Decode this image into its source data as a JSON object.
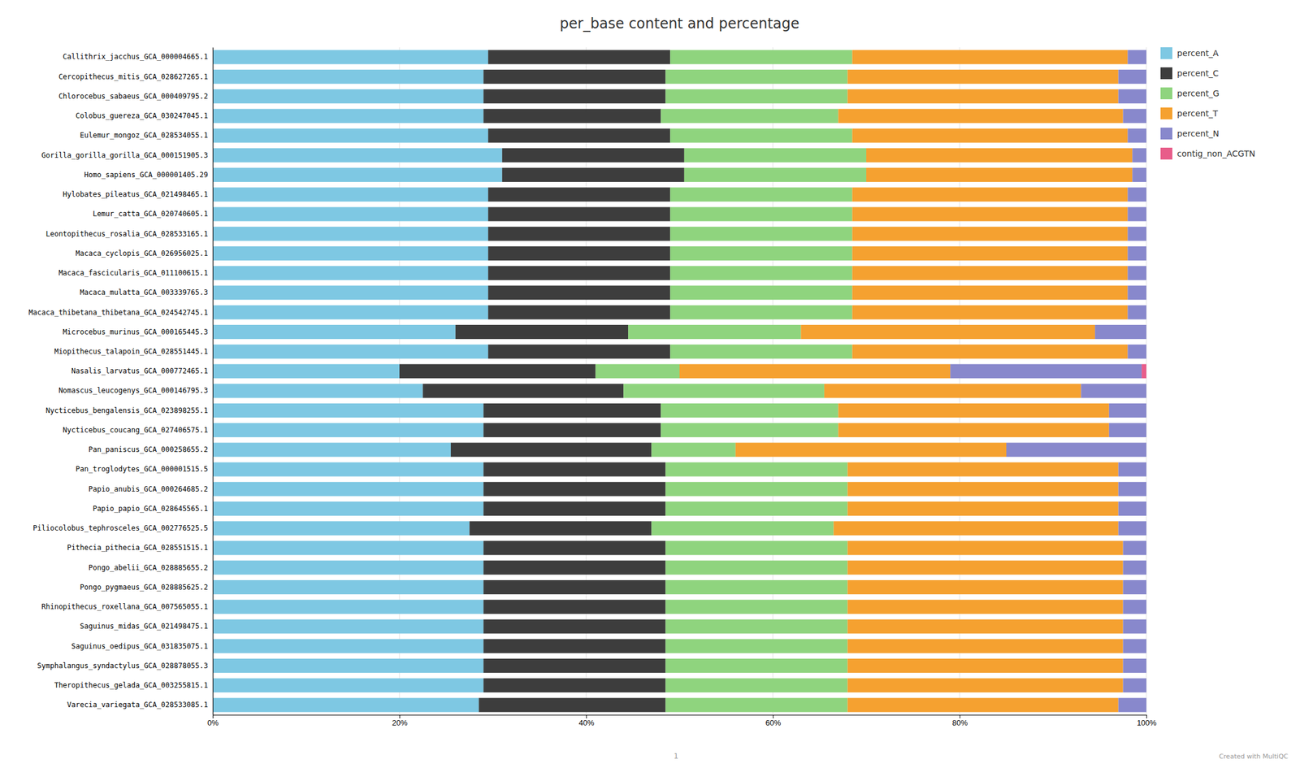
{
  "chart_data": {
    "type": "bar",
    "title": "per_base content and percentage",
    "orientation": "horizontal",
    "stacked": true,
    "grid": true,
    "legend": "right",
    "categories": [
      "Callithrix_jacchus_GCA_000004665.1",
      "Cercopithecus_mitis_GCA_028627265.1",
      "Chlorocebus_sabaeus_GCA_000409795.2",
      "Colobus_guereza_GCA_030247045.1",
      "Eulemur_mongoz_GCA_028534055.1",
      "Gorilla_gorilla_gorilla_GCA_000151905.3",
      "Homo_sapiens_GCA_000001405.29",
      "Hylobates_pileatus_GCA_021498465.1",
      "Lemur_catta_GCA_020740605.1",
      "Leontopithecus_rosalia_GCA_028533165.1",
      "Macaca_cyclopis_GCA_026956025.1",
      "Macaca_fascicularis_GCA_011100615.1",
      "Macaca_mulatta_GCA_003339765.3",
      "Macaca_thibetana_thibetana_GCA_024542745.1",
      "Microcebus_murinus_GCA_000165445.3",
      "Miopithecus_talapoin_GCA_028551445.1",
      "Nasalis_larvatus_GCA_000772465.1",
      "Nomascus_leucogenys_GCA_000146795.3",
      "Nycticebus_bengalensis_GCA_023898255.1",
      "Nycticebus_coucang_GCA_027406575.1",
      "Pan_paniscus_GCA_000258655.2",
      "Pan_troglodytes_GCA_000001515.5",
      "Papio_anubis_GCA_000264685.2",
      "Papio_papio_GCA_028645565.1",
      "Piliocolobus_tephrosceles_GCA_002776525.5",
      "Pithecia_pithecia_GCA_028551515.1",
      "Pongo_abelii_GCA_028885655.2",
      "Pongo_pygmaeus_GCA_028885625.2",
      "Rhinopithecus_roxellana_GCA_007565055.1",
      "Saguinus_midas_GCA_021498475.1",
      "Saguinus_oedipus_GCA_031835075.1",
      "Symphalangus_syndactylus_GCA_028878055.3",
      "Theropithecus_gelada_GCA_003255815.1",
      "Varecia_variegata_GCA_028533085.1"
    ],
    "series": [
      {
        "name": "percent_A",
        "color": "#7ec8e3",
        "values": [
          29.5,
          29.0,
          29.0,
          29.0,
          29.5,
          31.0,
          31.0,
          29.5,
          29.5,
          29.5,
          29.5,
          29.5,
          29.5,
          29.5,
          26.0,
          29.5,
          20.0,
          22.5,
          29.0,
          29.0,
          25.5,
          29.0,
          29.0,
          29.0,
          27.5,
          29.0,
          29.0,
          29.0,
          29.0,
          29.0,
          29.0,
          29.0,
          29.0,
          28.5
        ]
      },
      {
        "name": "percent_C",
        "color": "#3d3d3d",
        "values": [
          19.5,
          19.5,
          19.5,
          19.0,
          19.5,
          19.5,
          19.5,
          19.5,
          19.5,
          19.5,
          19.5,
          19.5,
          19.5,
          19.5,
          18.5,
          19.5,
          21.0,
          21.5,
          19.0,
          19.0,
          21.5,
          19.5,
          19.5,
          19.5,
          19.5,
          19.5,
          19.5,
          19.5,
          19.5,
          19.5,
          19.5,
          19.5,
          19.5,
          20.0
        ]
      },
      {
        "name": "percent_G",
        "color": "#8fd47e",
        "values": [
          19.5,
          19.5,
          19.5,
          19.0,
          19.5,
          19.5,
          19.5,
          19.5,
          19.5,
          19.5,
          19.5,
          19.5,
          19.5,
          19.5,
          18.5,
          19.5,
          9.0,
          21.5,
          19.0,
          19.0,
          9.0,
          19.5,
          19.5,
          19.5,
          19.5,
          19.5,
          19.5,
          19.5,
          19.5,
          19.5,
          19.5,
          19.5,
          19.5,
          19.5
        ]
      },
      {
        "name": "percent_T",
        "color": "#f5a130",
        "values": [
          29.5,
          29.0,
          29.0,
          30.5,
          29.5,
          28.5,
          28.5,
          29.5,
          29.5,
          29.5,
          29.5,
          29.5,
          29.5,
          29.5,
          31.5,
          29.5,
          29.0,
          27.5,
          29.0,
          29.0,
          29.0,
          29.0,
          29.0,
          29.0,
          30.5,
          29.5,
          29.5,
          29.5,
          29.5,
          29.5,
          29.5,
          29.5,
          29.5,
          29.0
        ]
      },
      {
        "name": "percent_N",
        "color": "#8888cc",
        "values": [
          2.0,
          3.0,
          3.0,
          2.5,
          2.0,
          1.5,
          1.5,
          2.0,
          2.0,
          2.0,
          2.0,
          2.0,
          2.0,
          2.0,
          5.5,
          2.0,
          20.5,
          7.0,
          4.0,
          4.0,
          15.0,
          3.0,
          3.0,
          3.0,
          3.0,
          2.5,
          2.5,
          2.5,
          2.5,
          2.5,
          2.5,
          2.5,
          2.5,
          3.0
        ]
      },
      {
        "name": "contig_non_ACGTN",
        "color": "#e85d8a",
        "values": [
          0.0,
          0.0,
          0.0,
          0.0,
          0.0,
          0.0,
          0.0,
          0.0,
          0.0,
          0.0,
          0.0,
          0.0,
          0.0,
          0.0,
          0.0,
          0.0,
          0.5,
          0.0,
          0.0,
          0.0,
          0.0,
          0.0,
          0.0,
          0.0,
          0.0,
          0.0,
          0.0,
          0.0,
          0.0,
          0.0,
          0.0,
          0.0,
          0.0,
          0.0
        ]
      }
    ],
    "xlim": [
      0,
      100
    ],
    "xticks": [
      {
        "value": 0,
        "label": "0%"
      },
      {
        "value": 20,
        "label": "20%"
      },
      {
        "value": 40,
        "label": "40%"
      },
      {
        "value": 60,
        "label": "60%"
      },
      {
        "value": 80,
        "label": "80%"
      },
      {
        "value": 100,
        "label": "100%"
      }
    ],
    "annotations": [
      "1",
      "Created with MultiQC"
    ]
  }
}
